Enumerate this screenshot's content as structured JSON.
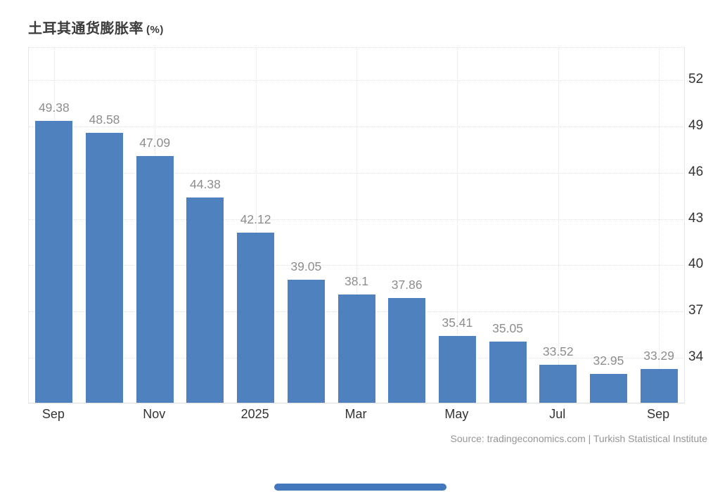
{
  "header": {
    "title": "土耳其通货膨胀率",
    "title_suffix": "(%)"
  },
  "chart_data": {
    "type": "bar",
    "title": "土耳其通货膨胀率 (%)",
    "bar_color": "#4e81bd",
    "bars": [
      {
        "value": 49.38,
        "label": "49.38"
      },
      {
        "value": 48.58,
        "label": "48.58"
      },
      {
        "value": 47.09,
        "label": "47.09"
      },
      {
        "value": 44.38,
        "label": "44.38"
      },
      {
        "value": 42.12,
        "label": "42.12"
      },
      {
        "value": 39.05,
        "label": "39.05"
      },
      {
        "value": 38.1,
        "label": "38.1"
      },
      {
        "value": 37.86,
        "label": "37.86"
      },
      {
        "value": 35.41,
        "label": "35.41"
      },
      {
        "value": 35.05,
        "label": "35.05"
      },
      {
        "value": 33.52,
        "label": "33.52"
      },
      {
        "value": 32.95,
        "label": "32.95"
      },
      {
        "value": 33.29,
        "label": "33.29"
      }
    ],
    "x_ticks": [
      {
        "index": 0,
        "label": "Sep"
      },
      {
        "index": 2,
        "label": "Nov"
      },
      {
        "index": 4,
        "label": "2025"
      },
      {
        "index": 6,
        "label": "Mar"
      },
      {
        "index": 8,
        "label": "May"
      },
      {
        "index": 10,
        "label": "Jul"
      },
      {
        "index": 12,
        "label": "Sep"
      }
    ],
    "yticks": [
      34,
      37,
      40,
      43,
      46,
      49,
      52
    ],
    "ylim": [
      31.08,
      54.1
    ],
    "yaxis_side": "right",
    "grid": "dotted"
  },
  "footer": {
    "source": "Source: tradingeconomics.com | Turkish Statistical Institute"
  },
  "ui": {
    "range_slider_color": "#4478bd"
  }
}
